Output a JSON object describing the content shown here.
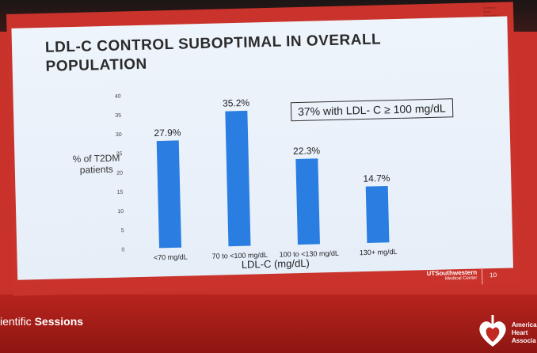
{
  "slide": {
    "title": "LDL-C CONTROL SUBOPTIMAL IN OVERALL POPULATION",
    "callout": "37% with LDL- C ≥ 100 mg/dL",
    "page_number": "10"
  },
  "branding": {
    "top_logo_text": "American Heart Association",
    "ut_line1": "UTSouthwestern",
    "ut_line2": "Medical Center",
    "footer_left_light": "ientific ",
    "footer_left_bold": "Sessions",
    "footer_right": "America Heart Associa"
  },
  "colors": {
    "bar": "#2a7de1",
    "slide_bg": "#e9f1fa",
    "frame": "#c9332b"
  },
  "chart_data": {
    "type": "bar",
    "title": "",
    "xlabel": "LDL-C (mg/dL)",
    "ylabel": "% of T2DM patients",
    "categories": [
      "<70 mg/dL",
      "70 to <100 mg/dL",
      "100 to <130 mg/dL",
      "130+ mg/dL"
    ],
    "values": [
      27.9,
      35.2,
      22.3,
      14.7
    ],
    "value_labels": [
      "27.9%",
      "35.2%",
      "22.3%",
      "14.7%"
    ],
    "ylim": [
      0,
      40
    ],
    "yticks": [
      0,
      5,
      10,
      15,
      20,
      25,
      30,
      35,
      40
    ],
    "grid": false
  }
}
